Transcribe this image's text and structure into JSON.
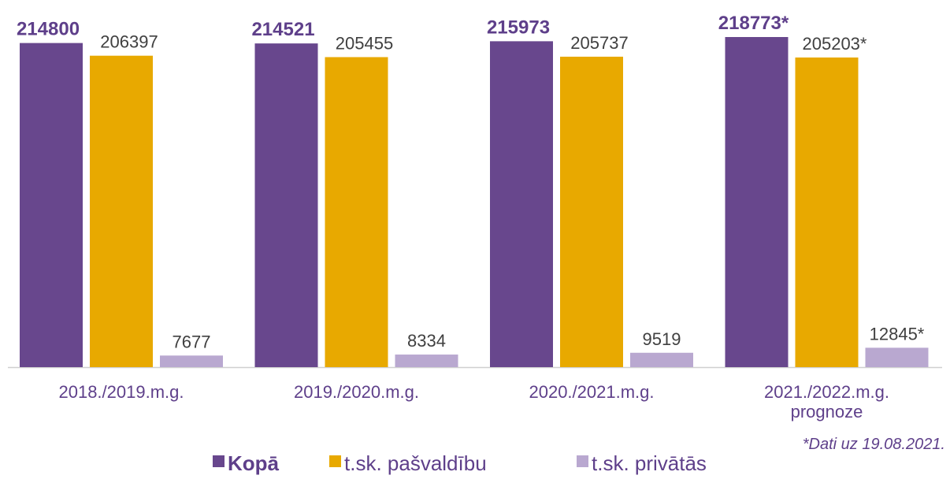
{
  "chart_data": {
    "type": "bar",
    "categories": [
      "2018./2019.m.g.",
      "2019./2020.m.g.",
      "2020./2021.m.g.",
      "2021./2022.m.g.\nprognoze"
    ],
    "series": [
      {
        "name": "Kopā",
        "color": "#68478d",
        "values": [
          214800,
          214521,
          215973,
          218773
        ],
        "value_labels": [
          "214800",
          "214521",
          "215973",
          "218773*"
        ]
      },
      {
        "name": "t.sk. pašvaldību",
        "color": "#e8a900",
        "values": [
          206397,
          205455,
          205737,
          205203
        ],
        "value_labels": [
          "206397",
          "205455",
          "205737",
          "205203*"
        ]
      },
      {
        "name": "t.sk. privātās",
        "color": "#b9a8d0",
        "values": [
          7677,
          8334,
          9519,
          12845
        ],
        "value_labels": [
          "7677",
          "8334",
          "9519",
          "12845*"
        ]
      }
    ],
    "annotation": "*Dati uz 19.08.2021."
  }
}
